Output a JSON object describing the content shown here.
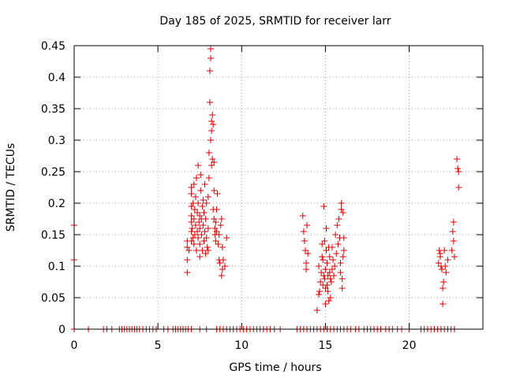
{
  "chart_data": {
    "type": "scatter",
    "title": "Day 185 of 2025, SRMTID for receiver larr",
    "xlabel": "GPS time / hours",
    "ylabel": "SRMTID / TECUs",
    "xlim": [
      0,
      24.4
    ],
    "ylim": [
      0,
      0.45
    ],
    "xticks": [
      0,
      5,
      10,
      15,
      20
    ],
    "xtick_labels": [
      "0",
      "5",
      "10",
      "15",
      "20"
    ],
    "yticks": [
      0,
      0.05,
      0.1,
      0.15,
      0.2,
      0.25,
      0.3,
      0.35,
      0.4,
      0.45
    ],
    "ytick_labels": [
      "0",
      "0.05",
      "0.1",
      "0.15",
      "0.2",
      "0.25",
      "0.3",
      "0.35",
      "0.4",
      "0.45"
    ],
    "grid": true,
    "marker": "+",
    "color": "#dd0000",
    "series": [
      {
        "name": "SRMTID",
        "points": [
          [
            0.0,
            0.165
          ],
          [
            0.0,
            0.11
          ],
          [
            0.0,
            0.0
          ],
          [
            0.85,
            0.0
          ],
          [
            1.75,
            0.0
          ],
          [
            1.95,
            0.0
          ],
          [
            2.25,
            0.0
          ],
          [
            2.7,
            0.0
          ],
          [
            2.85,
            0.0
          ],
          [
            3.0,
            0.0
          ],
          [
            3.15,
            0.0
          ],
          [
            3.3,
            0.0
          ],
          [
            3.45,
            0.0
          ],
          [
            3.6,
            0.0
          ],
          [
            3.75,
            0.0
          ],
          [
            3.9,
            0.0
          ],
          [
            4.1,
            0.0
          ],
          [
            4.3,
            0.0
          ],
          [
            4.5,
            0.0
          ],
          [
            4.7,
            0.0
          ],
          [
            4.9,
            0.0
          ],
          [
            5.35,
            0.0
          ],
          [
            5.6,
            0.0
          ],
          [
            5.9,
            0.0
          ],
          [
            6.05,
            0.0
          ],
          [
            6.2,
            0.0
          ],
          [
            6.35,
            0.0
          ],
          [
            6.5,
            0.0
          ],
          [
            6.65,
            0.0
          ],
          [
            6.8,
            0.0
          ],
          [
            7.0,
            0.0
          ],
          [
            7.5,
            0.0
          ],
          [
            7.9,
            0.0
          ],
          [
            8.5,
            0.0
          ],
          [
            8.7,
            0.0
          ],
          [
            8.9,
            0.0
          ],
          [
            9.1,
            0.0
          ],
          [
            9.3,
            0.0
          ],
          [
            9.5,
            0.0
          ],
          [
            9.7,
            0.0
          ],
          [
            9.9,
            0.0
          ],
          [
            10.1,
            0.0
          ],
          [
            10.3,
            0.0
          ],
          [
            10.5,
            0.0
          ],
          [
            10.7,
            0.0
          ],
          [
            10.9,
            0.0
          ],
          [
            11.1,
            0.0
          ],
          [
            11.3,
            0.0
          ],
          [
            11.5,
            0.0
          ],
          [
            11.7,
            0.0
          ],
          [
            11.95,
            0.0
          ],
          [
            12.3,
            0.0
          ],
          [
            13.3,
            0.0
          ],
          [
            13.5,
            0.0
          ],
          [
            13.7,
            0.0
          ],
          [
            13.9,
            0.0
          ],
          [
            14.1,
            0.0
          ],
          [
            14.3,
            0.0
          ],
          [
            14.5,
            0.0
          ],
          [
            14.7,
            0.0
          ],
          [
            14.9,
            0.0
          ],
          [
            15.1,
            0.0
          ],
          [
            15.3,
            0.0
          ],
          [
            15.5,
            0.0
          ],
          [
            15.7,
            0.0
          ],
          [
            15.9,
            0.0
          ],
          [
            16.1,
            0.0
          ],
          [
            16.3,
            0.0
          ],
          [
            16.5,
            0.0
          ],
          [
            16.8,
            0.0
          ],
          [
            17.0,
            0.0
          ],
          [
            17.3,
            0.0
          ],
          [
            17.5,
            0.0
          ],
          [
            17.7,
            0.0
          ],
          [
            17.9,
            0.0
          ],
          [
            18.1,
            0.0
          ],
          [
            18.3,
            0.0
          ],
          [
            18.6,
            0.0
          ],
          [
            18.8,
            0.0
          ],
          [
            19.0,
            0.0
          ],
          [
            19.3,
            0.0
          ],
          [
            19.55,
            0.0
          ],
          [
            20.0,
            0.0
          ],
          [
            20.7,
            0.0
          ],
          [
            20.9,
            0.0
          ],
          [
            21.1,
            0.0
          ],
          [
            21.3,
            0.0
          ],
          [
            21.5,
            0.0
          ],
          [
            21.7,
            0.0
          ],
          [
            21.9,
            0.0
          ],
          [
            22.1,
            0.0
          ],
          [
            22.3,
            0.0
          ],
          [
            22.5,
            0.0
          ],
          [
            22.7,
            0.0
          ],
          [
            6.75,
            0.09
          ],
          [
            6.75,
            0.11
          ],
          [
            6.75,
            0.13
          ],
          [
            6.75,
            0.14
          ],
          [
            6.85,
            0.125
          ],
          [
            7.0,
            0.14
          ],
          [
            7.0,
            0.155
          ],
          [
            7.0,
            0.17
          ],
          [
            7.0,
            0.18
          ],
          [
            7.0,
            0.195
          ],
          [
            7.0,
            0.215
          ],
          [
            7.0,
            0.225
          ],
          [
            7.05,
            0.16
          ],
          [
            7.1,
            0.145
          ],
          [
            7.1,
            0.2
          ],
          [
            7.15,
            0.135
          ],
          [
            7.15,
            0.175
          ],
          [
            7.15,
            0.23
          ],
          [
            7.2,
            0.15
          ],
          [
            7.2,
            0.19
          ],
          [
            7.25,
            0.165
          ],
          [
            7.25,
            0.21
          ],
          [
            7.3,
            0.125
          ],
          [
            7.3,
            0.24
          ],
          [
            7.35,
            0.155
          ],
          [
            7.35,
            0.185
          ],
          [
            7.4,
            0.145
          ],
          [
            7.4,
            0.2
          ],
          [
            7.4,
            0.26
          ],
          [
            7.45,
            0.17
          ],
          [
            7.5,
            0.115
          ],
          [
            7.5,
            0.135
          ],
          [
            7.5,
            0.16
          ],
          [
            7.5,
            0.18
          ],
          [
            7.55,
            0.22
          ],
          [
            7.55,
            0.245
          ],
          [
            7.6,
            0.15
          ],
          [
            7.6,
            0.175
          ],
          [
            7.65,
            0.125
          ],
          [
            7.65,
            0.195
          ],
          [
            7.7,
            0.165
          ],
          [
            7.7,
            0.205
          ],
          [
            7.75,
            0.14
          ],
          [
            7.75,
            0.185
          ],
          [
            7.8,
            0.155
          ],
          [
            7.8,
            0.23
          ],
          [
            7.85,
            0.12
          ],
          [
            7.85,
            0.175
          ],
          [
            7.9,
            0.145
          ],
          [
            7.9,
            0.2
          ],
          [
            7.95,
            0.13
          ],
          [
            8.0,
            0.125
          ],
          [
            8.0,
            0.16
          ],
          [
            8.0,
            0.21
          ],
          [
            8.05,
            0.24
          ],
          [
            8.05,
            0.28
          ],
          [
            8.1,
            0.36
          ],
          [
            8.1,
            0.41
          ],
          [
            8.15,
            0.43
          ],
          [
            8.15,
            0.445
          ],
          [
            8.15,
            0.3
          ],
          [
            8.2,
            0.315
          ],
          [
            8.2,
            0.33
          ],
          [
            8.2,
            0.26
          ],
          [
            8.25,
            0.27
          ],
          [
            8.25,
            0.34
          ],
          [
            8.3,
            0.325
          ],
          [
            8.3,
            0.19
          ],
          [
            8.35,
            0.175
          ],
          [
            8.35,
            0.22
          ],
          [
            8.35,
            0.265
          ],
          [
            8.4,
            0.15
          ],
          [
            8.4,
            0.16
          ],
          [
            8.45,
            0.14
          ],
          [
            8.45,
            0.17
          ],
          [
            8.5,
            0.155
          ],
          [
            8.5,
            0.19
          ],
          [
            8.55,
            0.215
          ],
          [
            8.6,
            0.135
          ],
          [
            8.65,
            0.11
          ],
          [
            8.65,
            0.15
          ],
          [
            8.7,
            0.105
          ],
          [
            8.75,
            0.165
          ],
          [
            8.8,
            0.175
          ],
          [
            8.8,
            0.085
          ],
          [
            8.85,
            0.095
          ],
          [
            8.85,
            0.13
          ],
          [
            8.9,
            0.11
          ],
          [
            9.0,
            0.1
          ],
          [
            9.1,
            0.145
          ],
          [
            13.65,
            0.18
          ],
          [
            13.7,
            0.155
          ],
          [
            13.75,
            0.14
          ],
          [
            13.8,
            0.125
          ],
          [
            13.85,
            0.105
          ],
          [
            13.85,
            0.095
          ],
          [
            13.9,
            0.165
          ],
          [
            13.95,
            0.12
          ],
          [
            14.5,
            0.03
          ],
          [
            14.6,
            0.055
          ],
          [
            14.6,
            0.1
          ],
          [
            14.65,
            0.06
          ],
          [
            14.7,
            0.075
          ],
          [
            14.75,
            0.09
          ],
          [
            14.8,
            0.115
          ],
          [
            14.8,
            0.135
          ],
          [
            14.85,
            0.07
          ],
          [
            14.85,
            0.11
          ],
          [
            14.9,
            0.195
          ],
          [
            14.9,
            0.085
          ],
          [
            14.95,
            0.08
          ],
          [
            14.95,
            0.14
          ],
          [
            15.0,
            0.04
          ],
          [
            15.0,
            0.065
          ],
          [
            15.0,
            0.095
          ],
          [
            15.05,
            0.125
          ],
          [
            15.05,
            0.16
          ],
          [
            15.1,
            0.07
          ],
          [
            15.1,
            0.105
          ],
          [
            15.15,
            0.085
          ],
          [
            15.15,
            0.06
          ],
          [
            15.2,
            0.045
          ],
          [
            15.2,
            0.13
          ],
          [
            15.25,
            0.115
          ],
          [
            15.25,
            0.09
          ],
          [
            15.3,
            0.05
          ],
          [
            15.3,
            0.08
          ],
          [
            15.35,
            0.075
          ],
          [
            15.4,
            0.13
          ],
          [
            15.4,
            0.095
          ],
          [
            15.45,
            0.11
          ],
          [
            15.5,
            0.085
          ],
          [
            15.55,
            0.1
          ],
          [
            15.6,
            0.15
          ],
          [
            15.65,
            0.12
          ],
          [
            15.7,
            0.165
          ],
          [
            15.75,
            0.135
          ],
          [
            15.8,
            0.175
          ],
          [
            15.85,
            0.145
          ],
          [
            15.9,
            0.09
          ],
          [
            15.9,
            0.105
          ],
          [
            15.95,
            0.19
          ],
          [
            15.95,
            0.2
          ],
          [
            16.0,
            0.065
          ],
          [
            16.0,
            0.08
          ],
          [
            16.05,
            0.115
          ],
          [
            16.05,
            0.185
          ],
          [
            16.1,
            0.125
          ],
          [
            16.1,
            0.145
          ],
          [
            21.75,
            0.105
          ],
          [
            21.8,
            0.125
          ],
          [
            21.85,
            0.12
          ],
          [
            21.85,
            0.115
          ],
          [
            21.9,
            0.1
          ],
          [
            21.95,
            0.095
          ],
          [
            22.0,
            0.065
          ],
          [
            22.0,
            0.04
          ],
          [
            22.05,
            0.075
          ],
          [
            22.1,
            0.125
          ],
          [
            22.15,
            0.1
          ],
          [
            22.2,
            0.09
          ],
          [
            22.3,
            0.11
          ],
          [
            22.55,
            0.125
          ],
          [
            22.6,
            0.155
          ],
          [
            22.65,
            0.14
          ],
          [
            22.65,
            0.17
          ],
          [
            22.7,
            0.115
          ],
          [
            22.85,
            0.27
          ],
          [
            22.9,
            0.255
          ],
          [
            22.95,
            0.225
          ],
          [
            22.95,
            0.25
          ]
        ]
      }
    ]
  }
}
